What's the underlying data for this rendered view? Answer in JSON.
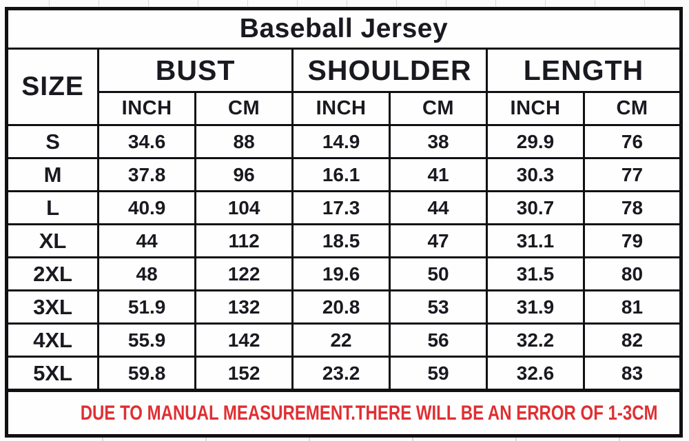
{
  "title": "Baseball Jersey",
  "columns": {
    "size": "SIZE",
    "groups": [
      {
        "label": "BUST"
      },
      {
        "label": "SHOULDER"
      },
      {
        "label": "LENGTH"
      }
    ],
    "units": [
      "INCH",
      "CM",
      "INCH",
      "CM",
      "INCH",
      "CM"
    ]
  },
  "rows": [
    {
      "size": "S",
      "values": [
        "34.6",
        "88",
        "14.9",
        "38",
        "29.9",
        "76"
      ]
    },
    {
      "size": "M",
      "values": [
        "37.8",
        "96",
        "16.1",
        "41",
        "30.3",
        "77"
      ]
    },
    {
      "size": "L",
      "values": [
        "40.9",
        "104",
        "17.3",
        "44",
        "30.7",
        "78"
      ]
    },
    {
      "size": "XL",
      "values": [
        "44",
        "112",
        "18.5",
        "47",
        "31.1",
        "79"
      ]
    },
    {
      "size": "2XL",
      "values": [
        "48",
        "122",
        "19.6",
        "50",
        "31.5",
        "80"
      ]
    },
    {
      "size": "3XL",
      "values": [
        "51.9",
        "132",
        "20.8",
        "53",
        "31.9",
        "81"
      ]
    },
    {
      "size": "4XL",
      "values": [
        "55.9",
        "142",
        "22",
        "56",
        "32.2",
        "82"
      ]
    },
    {
      "size": "5XL",
      "values": [
        "59.8",
        "152",
        "23.2",
        "59",
        "32.6",
        "83"
      ]
    }
  ],
  "footer": {
    "note": "DUE TO MANUAL MEASUREMENT.THERE WILL BE AN ERROR OF 1-3CM"
  },
  "colors": {
    "border": "#101014",
    "text": "#191920",
    "note_red": "#e02f33",
    "background": "#fefefe"
  },
  "chart_data": {
    "type": "table",
    "title": "Baseball Jersey",
    "column_groups": [
      "SIZE",
      "BUST",
      "SHOULDER",
      "LENGTH"
    ],
    "sub_columns": [
      "INCH",
      "CM",
      "INCH",
      "CM",
      "INCH",
      "CM"
    ],
    "rows": [
      [
        "S",
        34.6,
        88,
        14.9,
        38,
        29.9,
        76
      ],
      [
        "M",
        37.8,
        96,
        16.1,
        41,
        30.3,
        77
      ],
      [
        "L",
        40.9,
        104,
        17.3,
        44,
        30.7,
        78
      ],
      [
        "XL",
        44,
        112,
        18.5,
        47,
        31.1,
        79
      ],
      [
        "2XL",
        48,
        122,
        19.6,
        50,
        31.5,
        80
      ],
      [
        "3XL",
        51.9,
        132,
        20.8,
        53,
        31.9,
        81
      ],
      [
        "4XL",
        55.9,
        142,
        22,
        56,
        32.2,
        82
      ],
      [
        "5XL",
        59.8,
        152,
        23.2,
        59,
        32.6,
        83
      ]
    ],
    "annotation": "DUE TO MANUAL MEASUREMENT.THERE WILL BE AN ERROR OF 1-3CM"
  }
}
